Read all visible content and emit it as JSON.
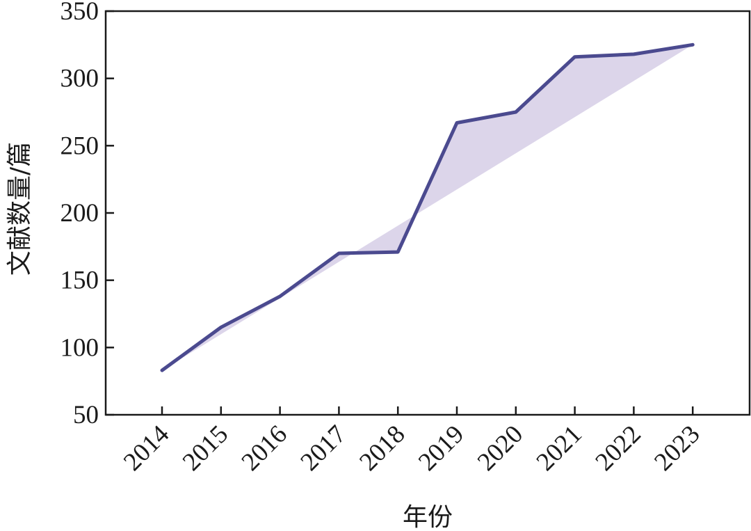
{
  "chart_data": {
    "type": "line",
    "title": "",
    "xlabel": "年份",
    "ylabel": "文献数量/篇",
    "categories": [
      "2014",
      "2015",
      "2016",
      "2017",
      "2018",
      "2019",
      "2020",
      "2021",
      "2022",
      "2023"
    ],
    "series": [
      {
        "values": [
          83,
          115,
          138,
          170,
          171,
          267,
          275,
          316,
          318,
          325
        ]
      }
    ],
    "ylim": [
      50,
      350
    ],
    "yticks": [
      50,
      100,
      150,
      200,
      250,
      300,
      350
    ],
    "fill": "shaded area between the series line and the straight line from the first to the last point",
    "line_color": "#4b4a8f",
    "fill_color": "#d8d0e8",
    "grid": false,
    "legend": "none"
  }
}
